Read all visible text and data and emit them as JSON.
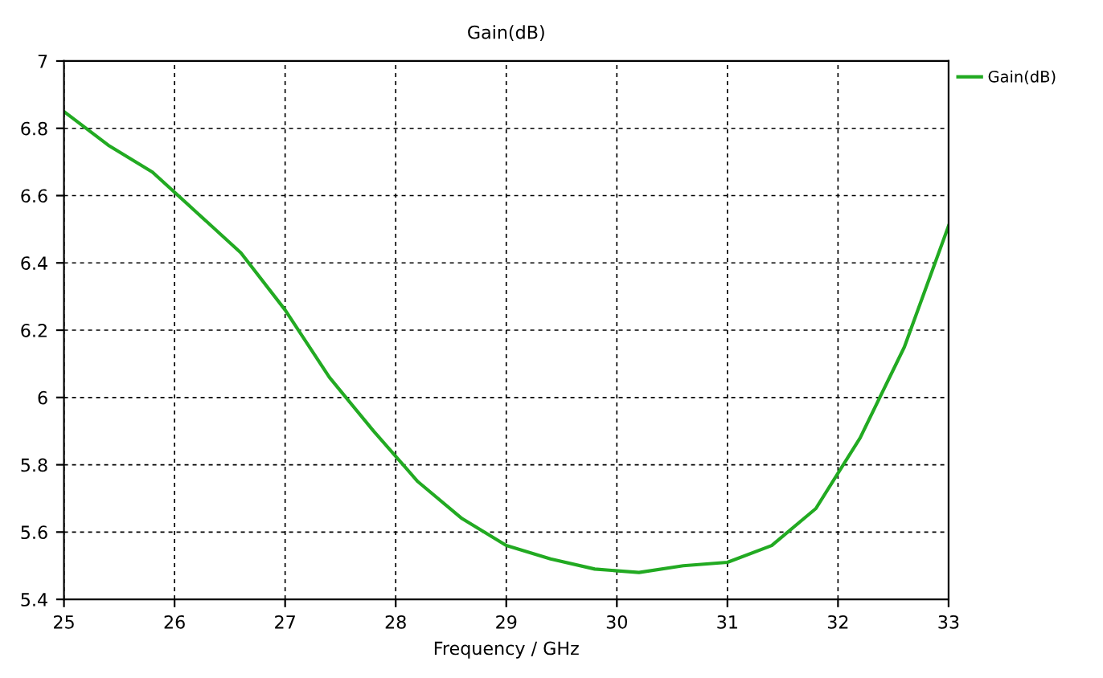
{
  "chart_data": {
    "type": "line",
    "title": "Gain(dB)",
    "xlabel": "Frequency / GHz",
    "x": [
      25.0,
      25.4,
      25.8,
      26.2,
      26.6,
      27.0,
      27.4,
      27.8,
      28.2,
      28.6,
      29.0,
      29.4,
      29.8,
      30.2,
      30.6,
      31.0,
      31.4,
      31.8,
      32.2,
      32.6,
      33.0
    ],
    "series": [
      {
        "name": "Gain(dB)",
        "color": "#22aa22",
        "values": [
          6.85,
          6.75,
          6.67,
          6.55,
          6.43,
          6.26,
          6.06,
          5.9,
          5.75,
          5.64,
          5.56,
          5.52,
          5.49,
          5.48,
          5.5,
          5.51,
          5.56,
          5.67,
          5.88,
          6.15,
          6.51
        ]
      }
    ],
    "xlim": [
      25,
      33
    ],
    "ylim": [
      5.4,
      7
    ],
    "xticks": [
      25,
      26,
      27,
      28,
      29,
      30,
      31,
      32,
      33
    ],
    "yticks": [
      5.4,
      5.6,
      5.8,
      6,
      6.2,
      6.4,
      6.6,
      6.8,
      7
    ],
    "grid": true,
    "legend": "top right",
    "line_style": "solid",
    "marker": "none"
  }
}
